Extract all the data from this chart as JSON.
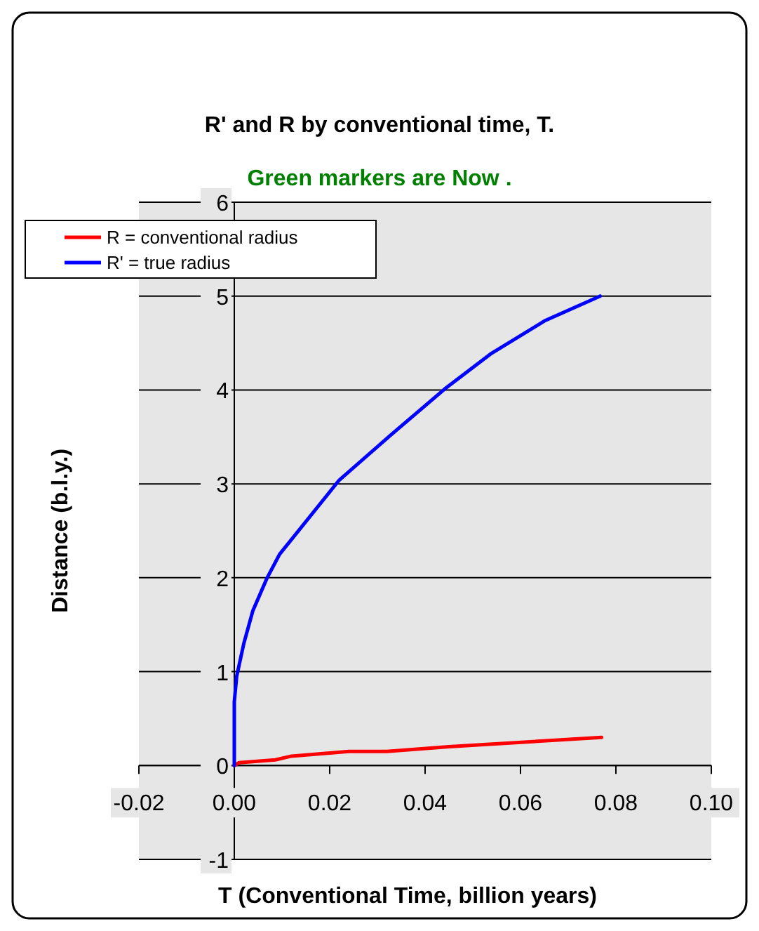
{
  "chart_data": {
    "type": "line",
    "title": "R' and R by conventional time, T.",
    "subtitle": "Green markers are Now .",
    "xlabel": "T (Conventional Time, billion years)",
    "ylabel": "Distance (b.l.y.)",
    "xlim": [
      -0.02,
      0.1
    ],
    "xticks": [
      {
        "value": -0.02,
        "label": "-0.02"
      },
      {
        "value": 0,
        "label": "0.00"
      },
      {
        "value": 0.02,
        "label": "0.02"
      },
      {
        "value": 0.04,
        "label": "0.04"
      },
      {
        "value": 0.06,
        "label": "0.06"
      },
      {
        "value": 0.08,
        "label": "0.08"
      },
      {
        "value": 0.1,
        "label": "0.10"
      }
    ],
    "ylim": [
      -1,
      6
    ],
    "yticks": [
      -1,
      0,
      1,
      2,
      3,
      4,
      5,
      6
    ],
    "grid": "y",
    "legend": "top left",
    "marker": "none",
    "line_style": "solid",
    "series": [
      {
        "name": "R = conventional radius",
        "color": "#ff0000",
        "x": [
          0,
          0.001,
          0.0086,
          0.012,
          0.024,
          0.032,
          0.045,
          0.077
        ],
        "values": [
          0,
          0.03,
          0.06,
          0.1,
          0.15,
          0.15,
          0.2,
          0.3
        ]
      },
      {
        "name": "R' = true radius",
        "color": "#0000ff",
        "x": [
          0,
          0,
          0.0005,
          0.002,
          0.0039,
          0.0069,
          0.0095,
          0.022,
          0.0328,
          0.0441,
          0.0539,
          0.0652,
          0.0767
        ],
        "values": [
          0,
          0.68,
          0.95,
          1.3,
          1.65,
          2.0,
          2.25,
          3.04,
          3.52,
          4.01,
          4.39,
          4.74,
          5.0
        ]
      }
    ]
  }
}
